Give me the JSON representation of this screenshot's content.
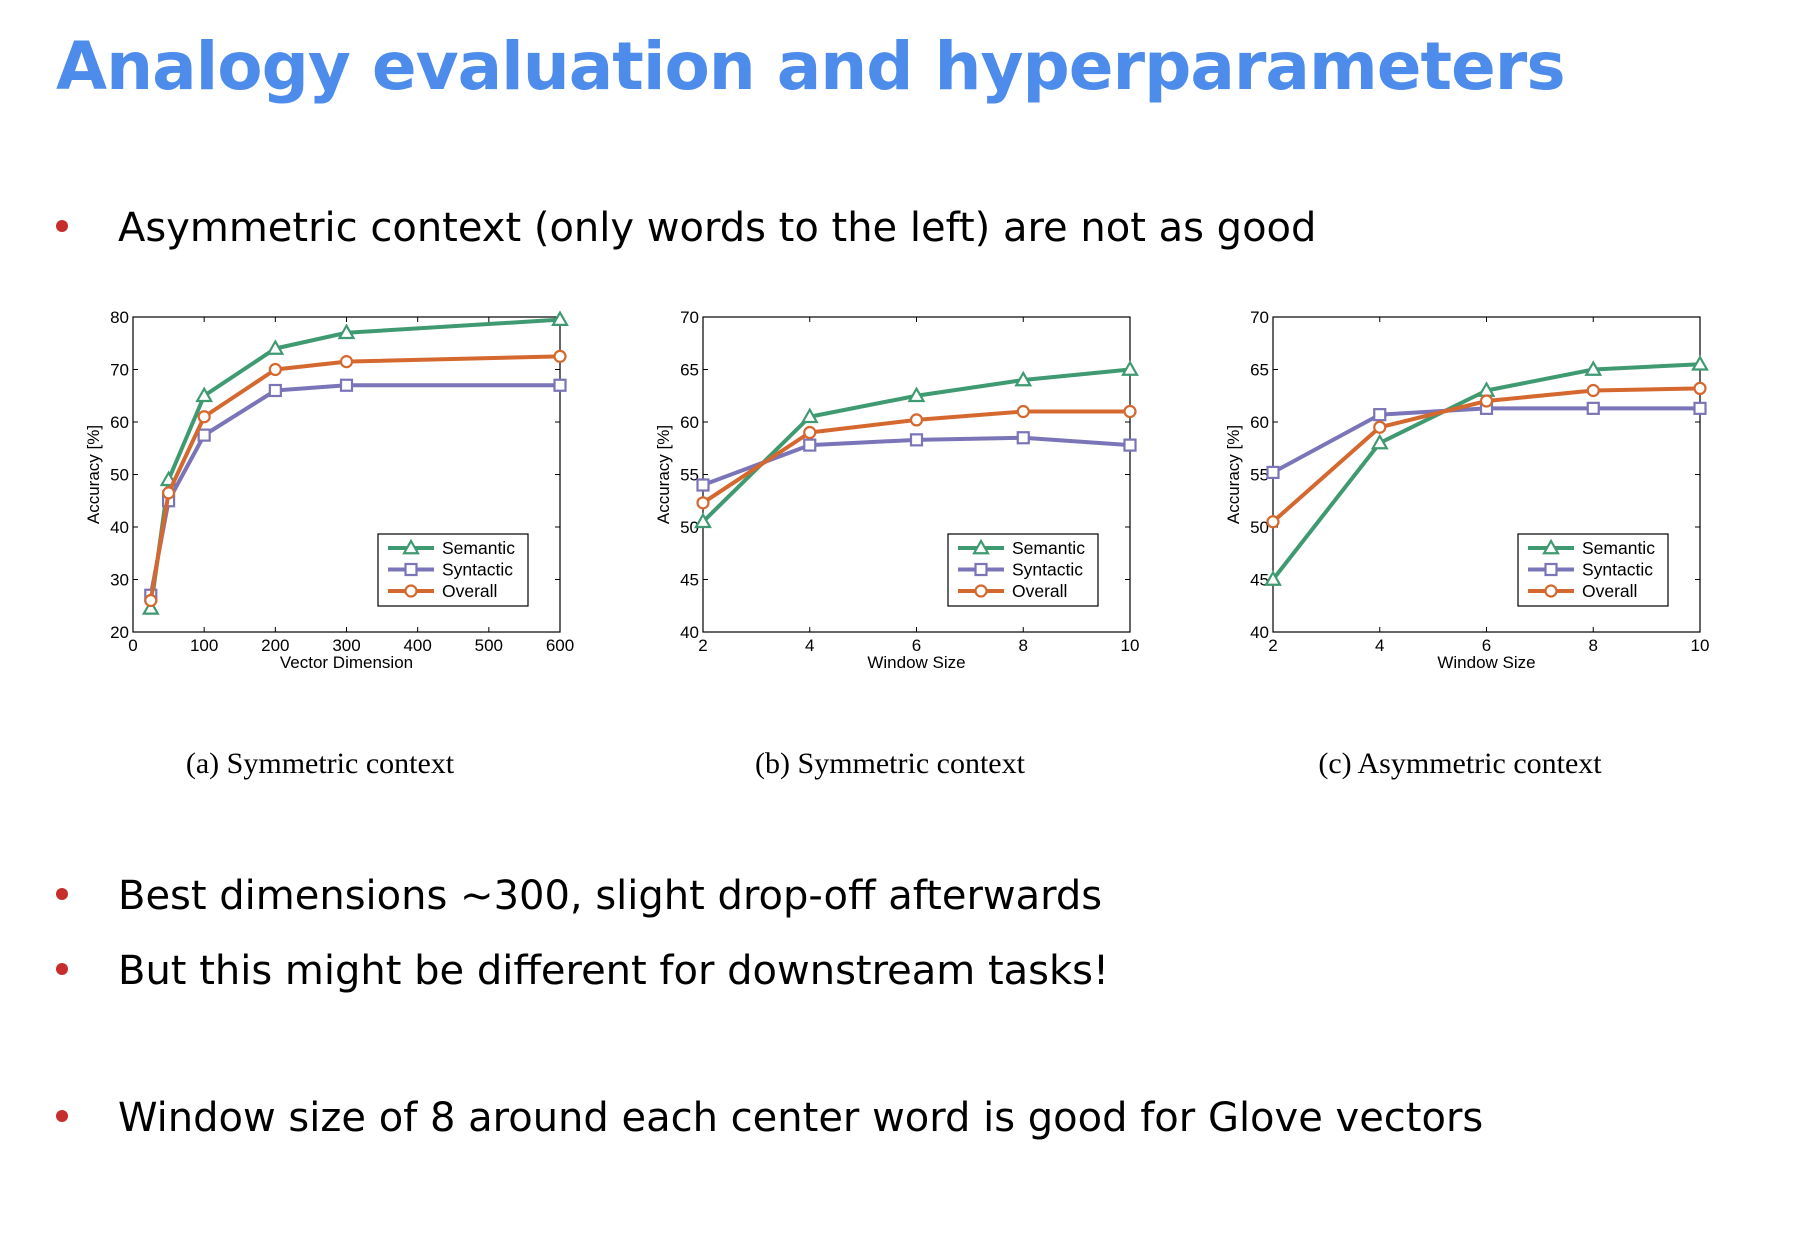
{
  "slide": {
    "title": "Analogy evaluation and hyperparameters",
    "bullets": [
      "Asymmetric context (only words to the left) are not as good",
      "Best dimensions ~300, slight drop-off afterwards",
      "But this might be different for downstream tasks!",
      "Window size of 8 around each center word is good for Glove vectors"
    ]
  },
  "colors": {
    "title": "#4e8cec",
    "bullet": "#c62d2d",
    "semantic": "#3f9a72",
    "syntactic": "#7a74b8",
    "overall": "#d4682f"
  },
  "chart_data": [
    {
      "type": "line",
      "caption": "(a)  Symmetric context",
      "xlabel": "Vector Dimension",
      "ylabel": "Accuracy [%]",
      "xlim": [
        0,
        600
      ],
      "ylim": [
        20,
        80
      ],
      "xticks": [
        0,
        100,
        200,
        300,
        400,
        500,
        600
      ],
      "yticks": [
        20,
        30,
        40,
        50,
        60,
        70,
        80
      ],
      "x_breaks_at": [
        300
      ],
      "x": [
        25,
        50,
        100,
        200,
        300,
        600
      ],
      "series": [
        {
          "name": "Semantic",
          "marker": "triangle",
          "values": [
            24.5,
            49,
            65,
            74,
            77,
            79.5
          ]
        },
        {
          "name": "Syntactic",
          "marker": "square",
          "values": [
            27,
            45,
            57.5,
            66,
            67,
            67
          ]
        },
        {
          "name": "Overall",
          "marker": "circle",
          "values": [
            26,
            46.5,
            61,
            70,
            71.5,
            72.5
          ]
        }
      ],
      "legend": "lower-right",
      "grid": false
    },
    {
      "type": "line",
      "caption": "(b)  Symmetric context",
      "xlabel": "Window Size",
      "ylabel": "Accuracy [%]",
      "xlim": [
        2,
        10
      ],
      "ylim": [
        40,
        70
      ],
      "xticks": [
        2,
        4,
        6,
        8,
        10
      ],
      "yticks": [
        40,
        45,
        50,
        55,
        60,
        65,
        70
      ],
      "x": [
        2,
        4,
        6,
        8,
        10
      ],
      "series": [
        {
          "name": "Semantic",
          "marker": "triangle",
          "values": [
            50.5,
            60.5,
            62.5,
            64,
            65
          ]
        },
        {
          "name": "Syntactic",
          "marker": "square",
          "values": [
            54,
            57.8,
            58.3,
            58.5,
            57.8
          ]
        },
        {
          "name": "Overall",
          "marker": "circle",
          "values": [
            52.3,
            59,
            60.2,
            61,
            61
          ]
        }
      ],
      "legend": "lower-right",
      "grid": false
    },
    {
      "type": "line",
      "caption": "(c)  Asymmetric context",
      "xlabel": "Window Size",
      "ylabel": "Accuracy [%]",
      "xlim": [
        2,
        10
      ],
      "ylim": [
        40,
        70
      ],
      "xticks": [
        2,
        4,
        6,
        8,
        10
      ],
      "yticks": [
        40,
        45,
        50,
        55,
        60,
        65,
        70
      ],
      "x": [
        2,
        4,
        6,
        8,
        10
      ],
      "series": [
        {
          "name": "Semantic",
          "marker": "triangle",
          "values": [
            45,
            58,
            63,
            65,
            65.5
          ]
        },
        {
          "name": "Syntactic",
          "marker": "square",
          "values": [
            55.2,
            60.7,
            61.3,
            61.3,
            61.3
          ]
        },
        {
          "name": "Overall",
          "marker": "circle",
          "values": [
            50.5,
            59.5,
            62,
            63,
            63.2
          ]
        }
      ],
      "legend": "lower-right",
      "grid": false
    }
  ]
}
